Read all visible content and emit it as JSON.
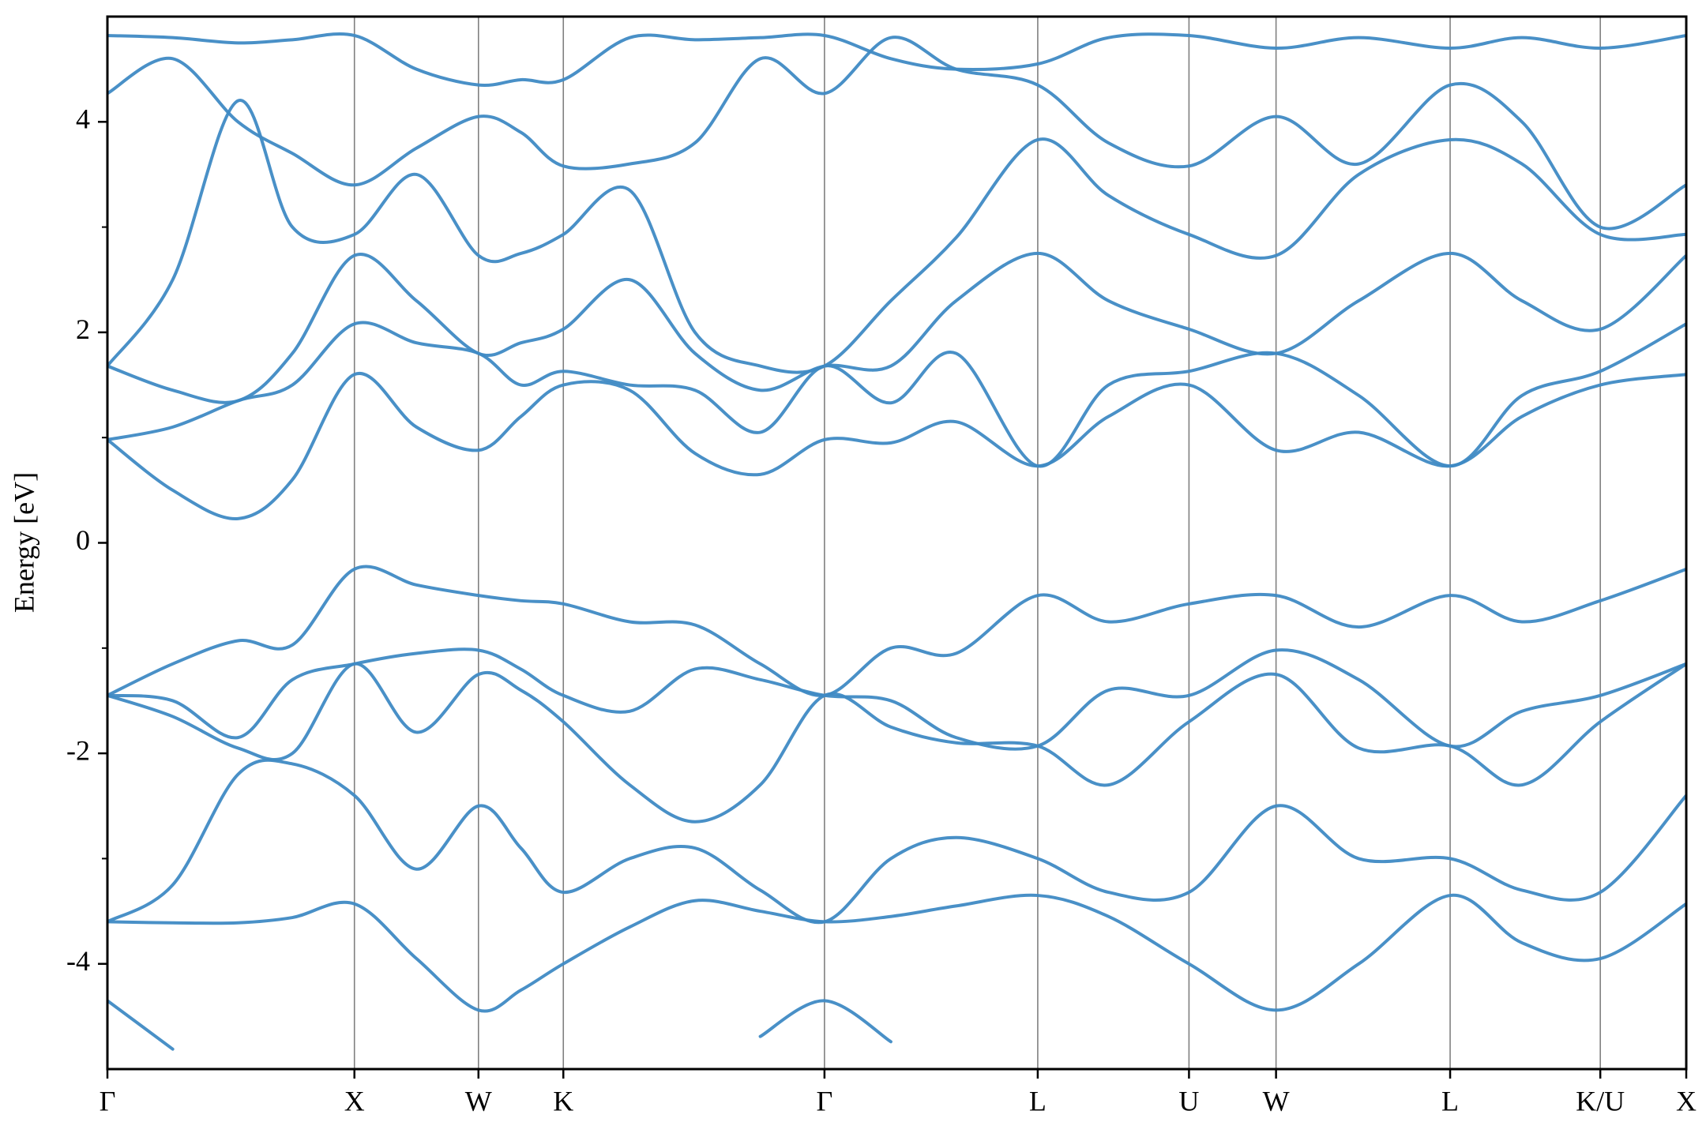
{
  "chart_data": {
    "type": "line",
    "ylabel": "Energy [eV]",
    "color": "#3f8ac4",
    "x": [
      0,
      0.6,
      1.2,
      1.7,
      2.27,
      2.84,
      3.41,
      3.8,
      4.19,
      4.8,
      5.4,
      6.0,
      6.59,
      7.2,
      7.8,
      8.55,
      9.2,
      9.94,
      10.74,
      11.5,
      12.34,
      13.0,
      13.72,
      14.51
    ],
    "xlim": [
      0,
      14.51
    ],
    "xticks": [
      {
        "value": 0,
        "label": "Γ"
      },
      {
        "value": 2.27,
        "label": "X"
      },
      {
        "value": 3.41,
        "label": "W"
      },
      {
        "value": 4.19,
        "label": "K"
      },
      {
        "value": 6.59,
        "label": "Γ"
      },
      {
        "value": 8.55,
        "label": "L"
      },
      {
        "value": 9.94,
        "label": "U"
      },
      {
        "value": 10.74,
        "label": "W"
      },
      {
        "value": 12.34,
        "label": "L"
      },
      {
        "value": 13.72,
        "label": "K/U"
      },
      {
        "value": 14.51,
        "label": "X"
      }
    ],
    "ylim": [
      -5,
      5
    ],
    "yticks": [
      -4,
      -2,
      0,
      2,
      4
    ],
    "yminorticks": [
      -3,
      -1,
      1,
      3
    ],
    "grid": "x",
    "series": [
      {
        "values": [
          -4.35,
          -4.81,
          null,
          null,
          null,
          null,
          null,
          null,
          null,
          null,
          null,
          -4.69,
          -4.35,
          -4.74,
          null,
          null,
          null,
          null,
          null,
          null,
          null,
          null,
          null,
          null
        ]
      },
      {
        "values": [
          -3.6,
          -3.61,
          -3.61,
          -3.56,
          -3.43,
          -3.95,
          -4.44,
          -4.25,
          -4.0,
          -3.65,
          -3.4,
          -3.5,
          -3.6,
          -3.55,
          -3.45,
          -3.35,
          -3.55,
          -4.0,
          -4.44,
          -4.0,
          -3.35,
          -3.8,
          -3.95,
          -3.43
        ]
      },
      {
        "values": [
          -3.6,
          -3.25,
          -2.2,
          -2.1,
          -2.4,
          -3.1,
          -2.5,
          -2.9,
          -3.32,
          -3.0,
          -2.9,
          -3.3,
          -3.6,
          -3.0,
          -2.8,
          -3.0,
          -3.32,
          -3.32,
          -2.5,
          -3.0,
          -3.0,
          -3.3,
          -3.32,
          -2.4
        ]
      },
      {
        "values": [
          -1.45,
          -1.65,
          -1.95,
          -2.0,
          -1.15,
          -1.8,
          -1.25,
          -1.4,
          -1.7,
          -2.3,
          -2.65,
          -2.3,
          -1.45,
          -1.75,
          -1.9,
          -1.93,
          -2.3,
          -1.7,
          -1.25,
          -1.95,
          -1.93,
          -2.3,
          -1.7,
          -1.15
        ]
      },
      {
        "values": [
          -1.45,
          -1.5,
          -1.85,
          -1.3,
          -1.15,
          -1.05,
          -1.02,
          -1.2,
          -1.45,
          -1.6,
          -1.2,
          -1.3,
          -1.45,
          -1.5,
          -1.85,
          -1.93,
          -1.4,
          -1.45,
          -1.02,
          -1.3,
          -1.93,
          -1.6,
          -1.45,
          -1.15
        ]
      },
      {
        "values": [
          -1.45,
          -1.15,
          -0.93,
          -0.97,
          -0.25,
          -0.4,
          -0.5,
          -0.55,
          -0.58,
          -0.75,
          -0.78,
          -1.15,
          -1.45,
          -1.0,
          -1.05,
          -0.5,
          -0.75,
          -0.58,
          -0.5,
          -0.8,
          -0.5,
          -0.75,
          -0.55,
          -0.25
        ]
      },
      {
        "values": [
          0.98,
          0.5,
          0.23,
          0.6,
          1.6,
          1.1,
          0.88,
          1.2,
          1.5,
          1.45,
          0.85,
          0.65,
          0.98,
          0.95,
          1.15,
          0.73,
          1.2,
          1.5,
          0.88,
          1.05,
          0.73,
          1.2,
          1.5,
          1.6
        ]
      },
      {
        "values": [
          0.98,
          1.1,
          1.35,
          1.5,
          2.08,
          1.9,
          1.8,
          1.5,
          1.63,
          1.5,
          1.45,
          1.05,
          1.68,
          1.33,
          1.8,
          0.73,
          1.5,
          1.63,
          1.8,
          1.4,
          0.73,
          1.4,
          1.63,
          2.08
        ]
      },
      {
        "values": [
          1.68,
          1.45,
          1.35,
          1.8,
          2.73,
          2.3,
          1.8,
          1.9,
          2.03,
          2.5,
          1.8,
          1.45,
          1.68,
          1.68,
          2.3,
          2.75,
          2.3,
          2.03,
          1.8,
          2.3,
          2.75,
          2.3,
          2.03,
          2.73
        ]
      },
      {
        "values": [
          1.68,
          2.5,
          4.2,
          3.0,
          2.93,
          3.5,
          2.73,
          2.75,
          2.93,
          3.35,
          2.0,
          1.68,
          1.68,
          2.3,
          2.9,
          3.83,
          3.3,
          2.93,
          2.73,
          3.5,
          3.83,
          3.6,
          2.93,
          2.93
        ]
      },
      {
        "values": [
          4.27,
          4.6,
          4.0,
          3.7,
          3.4,
          3.75,
          4.05,
          3.9,
          3.58,
          3.6,
          3.8,
          4.6,
          4.27,
          4.8,
          4.5,
          4.35,
          3.8,
          3.58,
          4.05,
          3.6,
          4.35,
          4.0,
          3.0,
          3.4
        ]
      },
      {
        "values": [
          4.82,
          4.8,
          4.75,
          4.78,
          4.82,
          4.5,
          4.35,
          4.4,
          4.4,
          4.8,
          4.78,
          4.8,
          4.82,
          4.6,
          4.5,
          4.55,
          4.8,
          4.82,
          4.7,
          4.8,
          4.7,
          4.8,
          4.7,
          4.82
        ]
      }
    ]
  }
}
